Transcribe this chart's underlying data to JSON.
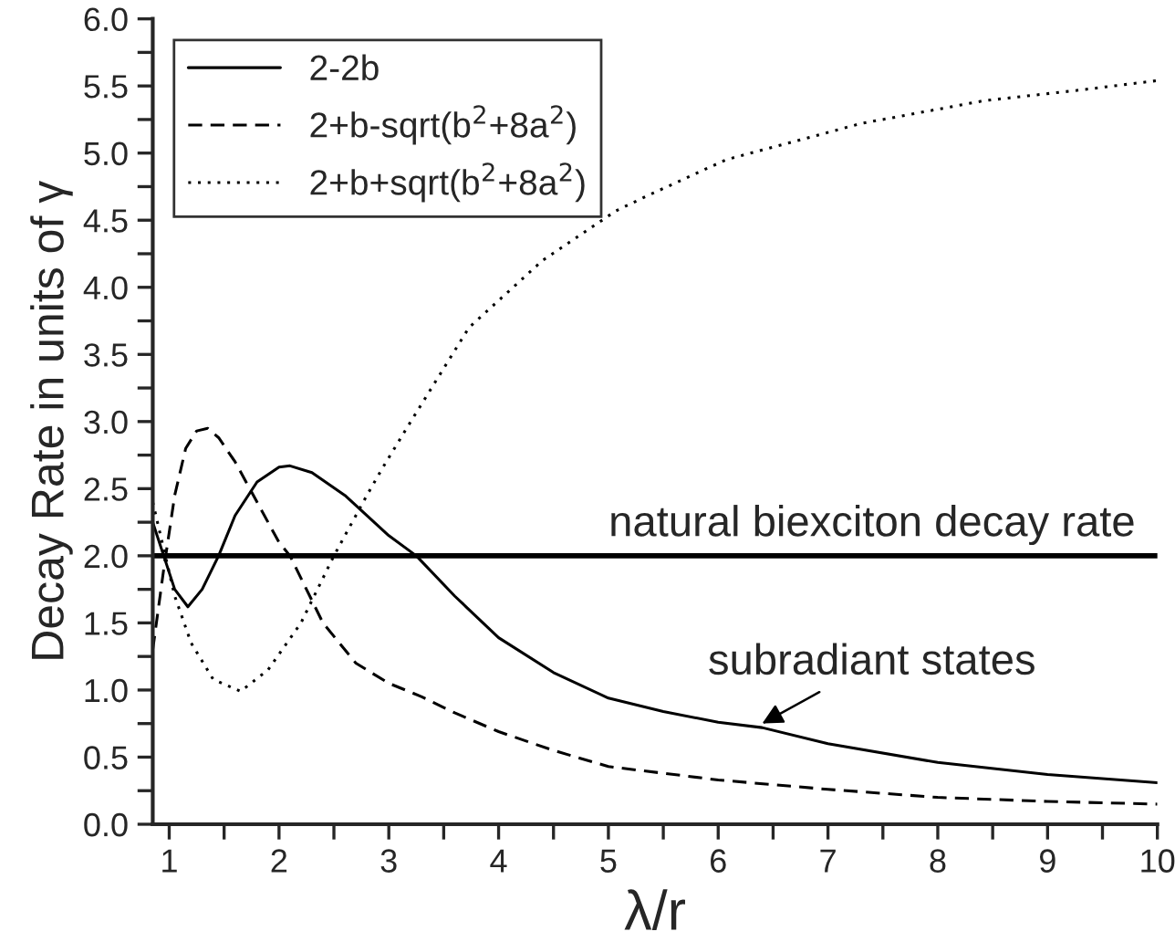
{
  "chart_data": {
    "type": "line",
    "xlabel": "λ/r",
    "ylabel": "Decay Rate in units of γ",
    "xlim": [
      0.85,
      10
    ],
    "ylim": [
      0,
      6
    ],
    "xticks": [
      1,
      {
        "value": 1.5,
        "label": null
      },
      2,
      {
        "value": 2.5,
        "label": null
      },
      3,
      {
        "value": 3.5,
        "label": null
      },
      4,
      {
        "value": 4.5,
        "label": null
      },
      5,
      {
        "value": 5.5,
        "label": null
      },
      6,
      {
        "value": 6.5,
        "label": null
      },
      7,
      {
        "value": 7.5,
        "label": null
      },
      8,
      {
        "value": 8.5,
        "label": null
      },
      9,
      {
        "value": 9.5,
        "label": null
      },
      10
    ],
    "yticks": [
      {
        "value": 0,
        "label": "0.0"
      },
      {
        "value": 0.25,
        "label": null
      },
      {
        "value": 0.5,
        "label": "0.5"
      },
      {
        "value": 0.75,
        "label": null
      },
      {
        "value": 1,
        "label": "1.0"
      },
      {
        "value": 1.25,
        "label": null
      },
      {
        "value": 1.5,
        "label": "1.5"
      },
      {
        "value": 1.75,
        "label": null
      },
      {
        "value": 2,
        "label": "2.0"
      },
      {
        "value": 2.25,
        "label": null
      },
      {
        "value": 2.5,
        "label": "2.5"
      },
      {
        "value": 2.75,
        "label": null
      },
      {
        "value": 3,
        "label": "3.0"
      },
      {
        "value": 3.25,
        "label": null
      },
      {
        "value": 3.5,
        "label": "3.5"
      },
      {
        "value": 3.75,
        "label": null
      },
      {
        "value": 4,
        "label": "4.0"
      },
      {
        "value": 4.25,
        "label": null
      },
      {
        "value": 4.5,
        "label": "4.5"
      },
      {
        "value": 4.75,
        "label": null
      },
      {
        "value": 5,
        "label": "5.0"
      },
      {
        "value": 5.25,
        "label": null
      },
      {
        "value": 5.5,
        "label": "5.5"
      },
      {
        "value": 5.75,
        "label": null
      },
      {
        "value": 6,
        "label": "6.0"
      }
    ],
    "legend": "top left",
    "grid": false,
    "marker": "none",
    "series": [
      {
        "name": "2-2b",
        "color": "#000000",
        "line_style": "solid",
        "x": [
          0.85,
          0.95,
          1.05,
          1.17,
          1.3,
          1.45,
          1.6,
          1.8,
          2.0,
          2.1,
          2.3,
          2.6,
          3.0,
          3.25,
          3.6,
          4.0,
          4.5,
          5.0,
          5.5,
          6.0,
          6.4,
          7.0,
          8.0,
          9.0,
          10.0
        ],
        "values": [
          2.25,
          2.0,
          1.75,
          1.62,
          1.75,
          2.0,
          2.3,
          2.55,
          2.66,
          2.67,
          2.62,
          2.45,
          2.15,
          2.0,
          1.7,
          1.39,
          1.13,
          0.94,
          0.84,
          0.76,
          0.72,
          0.6,
          0.46,
          0.37,
          0.31
        ]
      },
      {
        "name": "2+b-sqrt(b$^{2}$+8a$^{2}$)",
        "color": "#000000",
        "line_style": "dashed",
        "x": [
          0.85,
          0.95,
          1.05,
          1.15,
          1.25,
          1.35,
          1.45,
          1.6,
          1.8,
          2.0,
          2.1,
          2.4,
          2.7,
          3.0,
          3.3,
          3.6,
          4.0,
          4.5,
          5.0,
          6.0,
          7.0,
          8.0,
          9.0,
          10.0
        ],
        "values": [
          1.3,
          1.9,
          2.45,
          2.8,
          2.93,
          2.95,
          2.88,
          2.7,
          2.4,
          2.1,
          2.0,
          1.5,
          1.2,
          1.05,
          0.95,
          0.83,
          0.69,
          0.55,
          0.43,
          0.33,
          0.26,
          0.2,
          0.17,
          0.15
        ]
      },
      {
        "name": "2+b+sqrt(b$^{2}$+8a$^{2}$)",
        "color": "#000000",
        "line_style": "dotted",
        "x": [
          0.85,
          0.95,
          1.05,
          1.2,
          1.4,
          1.65,
          1.9,
          2.2,
          2.5,
          2.8,
          2.94,
          3.2,
          3.73,
          4.4,
          5.07,
          5.35,
          6.07,
          7.3,
          8.42,
          9.3,
          10.0
        ],
        "values": [
          2.4,
          2.05,
          1.7,
          1.35,
          1.08,
          0.99,
          1.15,
          1.5,
          2.0,
          2.45,
          2.65,
          3.0,
          3.7,
          4.2,
          4.57,
          4.68,
          4.95,
          5.22,
          5.39,
          5.47,
          5.54
        ]
      }
    ],
    "ref_lines": [
      {
        "axis": "y",
        "value": 2.0,
        "label": "natural biexciton decay rate",
        "color": "#000000",
        "line_style": "solid"
      }
    ],
    "annotations": [
      {
        "text": "subradiant states",
        "x": 6.4,
        "y": 0.75
      }
    ]
  }
}
